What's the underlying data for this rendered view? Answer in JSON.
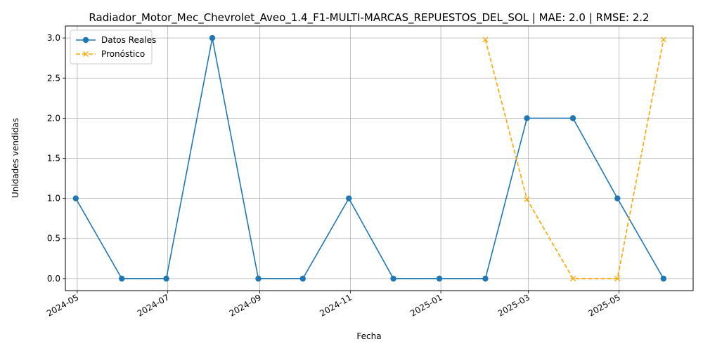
{
  "chart_data": {
    "type": "line",
    "title": "Radiador_Motor_Mec_Chevrolet_Aveo_1.4_F1-MULTI-MARCAS_REPUESTOS_DEL_SOL | MAE: 2.0 | RMSE: 2.2",
    "xlabel": "Fecha",
    "ylabel": "Unidades vendidas",
    "ylim": [
      -0.15,
      3.15
    ],
    "xlim": [
      "2024-04-23",
      "2025-06-20"
    ],
    "grid": true,
    "legend_position": "upper-left",
    "x_ticks": [
      "2024-05",
      "2024-07",
      "2024-09",
      "2024-11",
      "2025-01",
      "2025-03",
      "2025-05"
    ],
    "y_ticks": [
      "0.0",
      "0.5",
      "1.0",
      "1.5",
      "2.0",
      "2.5",
      "3.0"
    ],
    "series": [
      {
        "name": "Datos Reales",
        "color": "#1f77b4",
        "style": "solid",
        "marker": "circle",
        "x": [
          "2024-04-30",
          "2024-05-31",
          "2024-06-30",
          "2024-07-31",
          "2024-08-31",
          "2024-09-30",
          "2024-10-31",
          "2024-11-30",
          "2024-12-31",
          "2025-01-31",
          "2025-02-28",
          "2025-03-31",
          "2025-04-30",
          "2025-05-31"
        ],
        "values": [
          1,
          0,
          0,
          3,
          0,
          0,
          1,
          0,
          0,
          0,
          2,
          2,
          1,
          0
        ]
      },
      {
        "name": "Pronóstico",
        "color": "#ffa500",
        "style": "dashed",
        "marker": "x",
        "x": [
          "2025-01-31",
          "2025-02-28",
          "2025-03-31",
          "2025-04-30",
          "2025-05-31"
        ],
        "values": [
          2.98,
          0.99,
          0,
          0,
          2.98
        ]
      }
    ]
  }
}
